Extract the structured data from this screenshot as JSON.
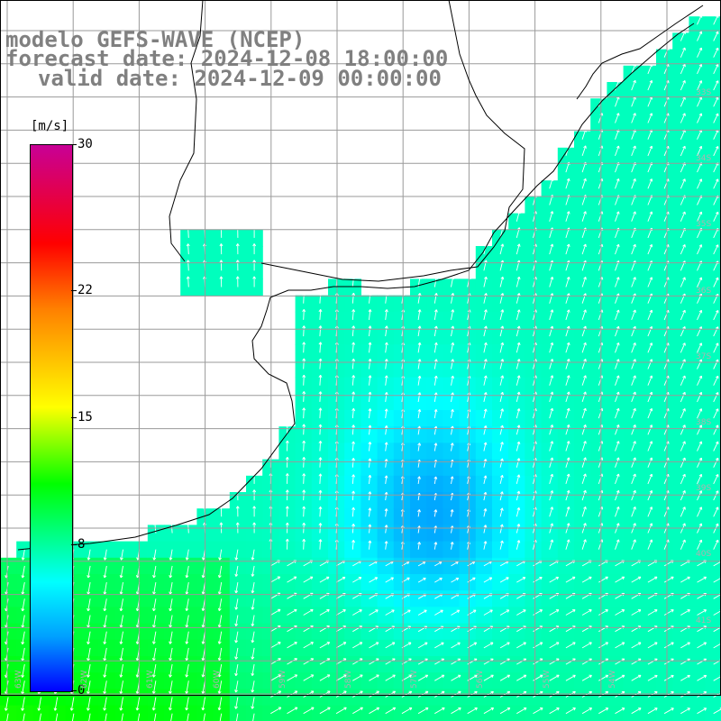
{
  "titles": {
    "line1": "modelo GEFS-WAVE (NCEP)",
    "line2": "forecast date: 2024-12-08 18:00:00",
    "line3": "valid date: 2024-12-09 00:00:00"
  },
  "colorbar": {
    "unit": "[m/s]",
    "ticks": [
      "30",
      "22",
      "15",
      "8",
      "0"
    ],
    "tick_values": [
      30,
      22,
      15,
      8,
      0
    ],
    "range": [
      0,
      30
    ],
    "colors": [
      "#0000ff",
      "#00a0ff",
      "#00ffff",
      "#00ff00",
      "#ffff00",
      "#ff8000",
      "#ff0000",
      "#c80096"
    ]
  },
  "grid": {
    "lat_labels": [
      "33S",
      "34S",
      "35S",
      "36S",
      "37S",
      "38S",
      "39S",
      "40S",
      "41S"
    ],
    "lon_labels": [
      "63W",
      "62W",
      "61W",
      "60W",
      "59W",
      "58W",
      "57W",
      "56W",
      "55W",
      "54W"
    ]
  },
  "map": {
    "field": "wind speed and direction",
    "land_color": "#ffffff",
    "grid_color": "#9a9a9a",
    "arrow_color": "#ffffff",
    "coast_color": "#000000"
  }
}
